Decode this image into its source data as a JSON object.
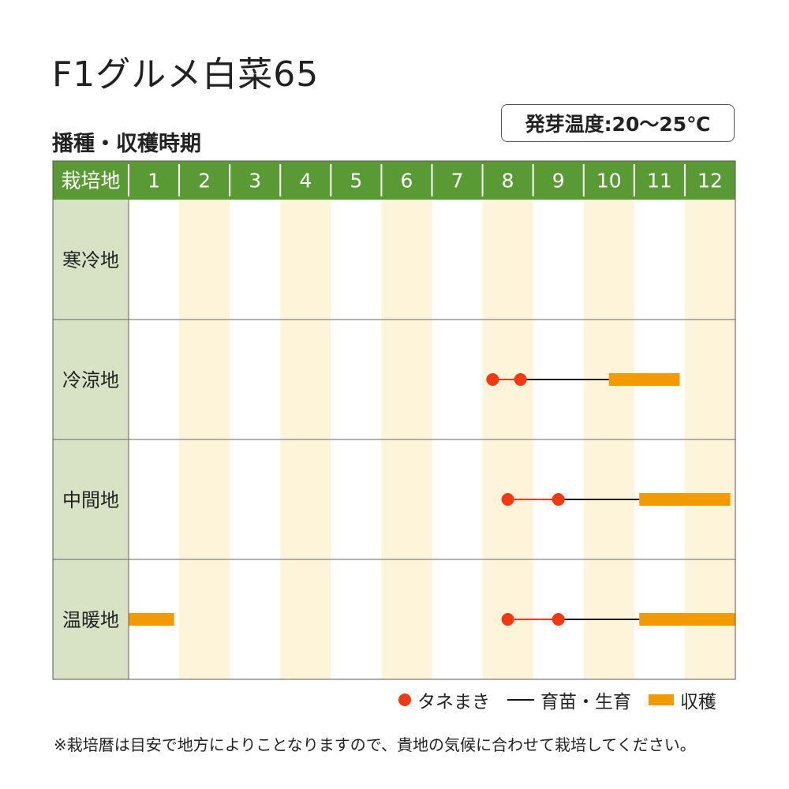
{
  "title": "F1グルメ白菜65",
  "subtitle": "播種・収穫時期",
  "germination_temp": "発芽温度:20〜25℃",
  "note": "※栽培暦は目安で地方によりことなりますので、貴地の気候に合わせて栽培してください。",
  "colors": {
    "header_green": "#5a9a35",
    "row_label_bg": "#d8e2c5",
    "stripe": "#fdf4d9",
    "sowing": "#f13a13",
    "seedling": "#111111",
    "harvest": "#f39a00"
  },
  "legend": {
    "sowing": "タネまき",
    "seedling": "育苗・生育",
    "harvest": "収穫"
  },
  "chart_data": {
    "type": "table",
    "header_label": "栽培地",
    "months": [
      "1",
      "2",
      "3",
      "4",
      "5",
      "6",
      "7",
      "8",
      "9",
      "10",
      "11",
      "12"
    ],
    "rows": [
      {
        "region": "寒冷地",
        "sowing": [],
        "growing": [],
        "harvest": []
      },
      {
        "region": "冷涼地",
        "sowing": [
          8.2,
          8.75
        ],
        "growing": [
          [
            8.75,
            10.5
          ]
        ],
        "harvest": [
          [
            10.5,
            11.9
          ]
        ]
      },
      {
        "region": "中間地",
        "sowing": [
          8.5,
          9.5
        ],
        "growing": [
          [
            9.5,
            11.1
          ]
        ],
        "harvest": [
          [
            11.1,
            12.9
          ]
        ]
      },
      {
        "region": "温暖地",
        "sowing": [
          8.5,
          9.5
        ],
        "growing": [
          [
            9.5,
            11.1
          ]
        ],
        "harvest": [
          [
            11.1,
            13.0
          ],
          [
            1.0,
            1.9
          ]
        ]
      }
    ]
  }
}
